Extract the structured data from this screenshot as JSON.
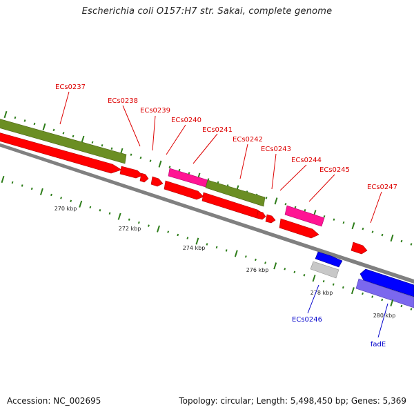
{
  "title": "Escherichia coli O157:H7 str. Sakai, complete genome",
  "footer": {
    "accession": "Accession: NC_002695",
    "stats": "Topology: circular; Length: 5,498,450 bp; Genes: 5,369"
  },
  "colors": {
    "gc_skew_tick": "#2e7d1a",
    "label_red": "#dd0000",
    "label_blue": "#0000cc",
    "backbone": "#808080",
    "olive": "#6b8e23",
    "red": "#ff0000",
    "magenta": "#ff1493",
    "blue": "#0000ff",
    "slate": "#7b68ee",
    "grey": "#c8c8c8"
  },
  "ruler_labels": [
    "270 kbp",
    "272 kbp",
    "274 kbp",
    "276 kbp",
    "278 kbp",
    "280 kbp"
  ],
  "gene_labels": {
    "ECs0237": "ECs0237",
    "ECs0238": "ECs0238",
    "ECs0239": "ECs0239",
    "ECs0240": "ECs0240",
    "ECs0241": "ECs0241",
    "ECs0242": "ECs0242",
    "ECs0243": "ECs0243",
    "ECs0244": "ECs0244",
    "ECs0245": "ECs0245",
    "ECs0246": "ECs0246",
    "ECs0247": "ECs0247",
    "fadE": "fadE"
  }
}
